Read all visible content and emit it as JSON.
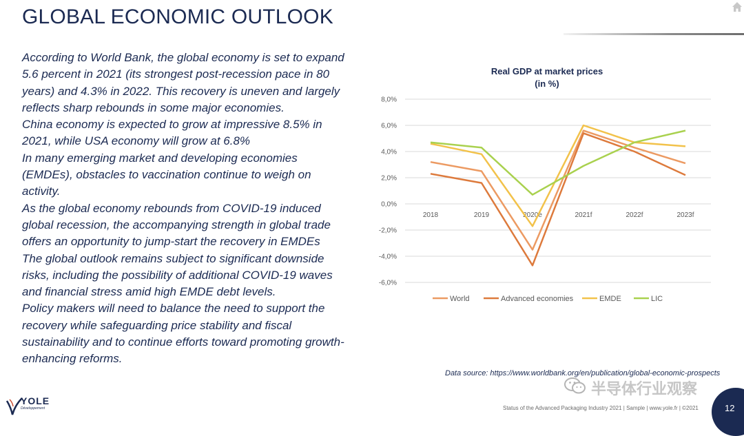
{
  "title": "GLOBAL ECONOMIC OUTLOOK",
  "paragraphs": [
    "According to World Bank, the global economy is set to expand 5.6 percent in 2021 (its strongest post-recession pace in 80 years) and 4.3% in 2022. This recovery is uneven and largely reflects sharp rebounds in some major economies.",
    "China economy is expected to grow at impressive 8.5% in 2021, while USA economy will grow at 6.8%",
    "In many emerging market and developing economies (EMDEs), obstacles to vaccination continue to weigh on activity.",
    "As the global economy rebounds from COVID-19 induced global recession, the accompanying strength in global trade offers an opportunity to jump-start the recovery in EMDEs",
    "The global outlook remains subject to significant downside risks, including the possibility of additional COVID-19 waves and financial stress amid high EMDE debt levels.",
    "Policy makers will need to balance the need to support the recovery while safeguarding price stability and fiscal sustainability and to continue efforts toward promoting growth-enhancing reforms."
  ],
  "chart_data": {
    "type": "line",
    "title": "Real GDP at market prices",
    "subtitle": "(in %)",
    "categories": [
      "2018",
      "2019",
      "2020e",
      "2021f",
      "2022f",
      "2023f"
    ],
    "yticks": [
      "8,0%",
      "6,0%",
      "4,0%",
      "2,0%",
      "0,0%",
      "-2,0%",
      "-4,0%",
      "-6,0%"
    ],
    "ylim": [
      -6,
      8
    ],
    "grid": true,
    "legend_position": "bottom",
    "series": [
      {
        "name": "World",
        "color": "#ec9a62",
        "values": [
          3.2,
          2.5,
          -3.5,
          5.6,
          4.3,
          3.1
        ]
      },
      {
        "name": "Advanced economies",
        "color": "#dd7a3c",
        "values": [
          2.3,
          1.6,
          -4.7,
          5.4,
          4.0,
          2.2
        ]
      },
      {
        "name": "EMDE",
        "color": "#f2c24a",
        "values": [
          4.6,
          3.8,
          -1.7,
          6.0,
          4.7,
          4.4
        ]
      },
      {
        "name": "LIC",
        "color": "#a9d14e",
        "values": [
          4.7,
          4.3,
          0.7,
          2.9,
          4.7,
          5.6
        ]
      }
    ]
  },
  "source": "Data source: https://www.worldbank.org/en/publication/global-economic-prospects",
  "watermark": "半导体行业观察",
  "footer": "Status of the Advanced Packaging Industry 2021 | Sample | www.yole.fr | ©2021",
  "page_number": "12",
  "logo": {
    "name": "YOLE",
    "sub": "Développement"
  },
  "icons": {
    "home": "home-icon",
    "wechat": "wechat-icon"
  }
}
